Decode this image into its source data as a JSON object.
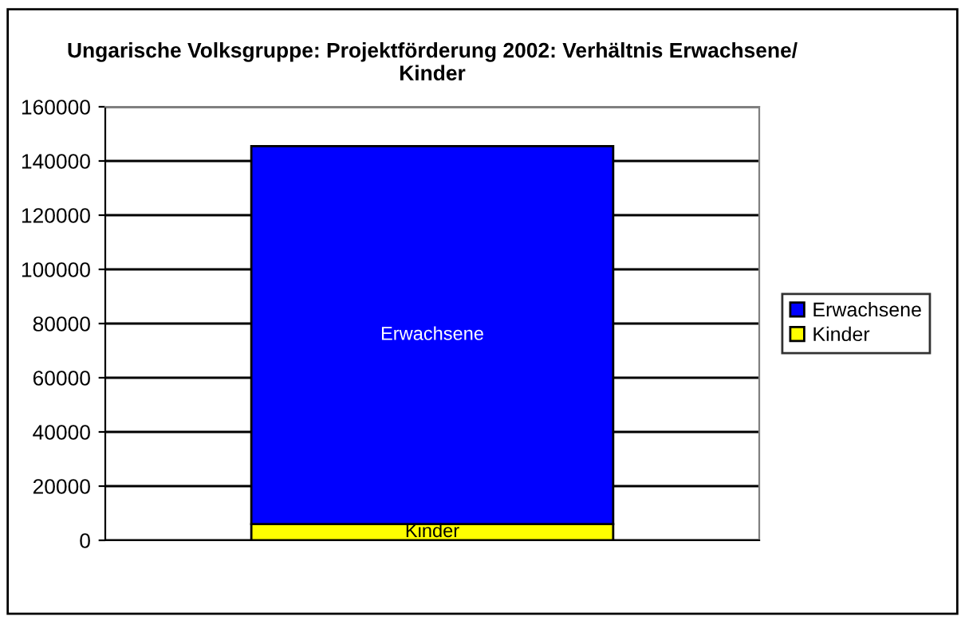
{
  "chart_data": {
    "type": "bar",
    "title": "Ungarische Volksgruppe: Projektförderung 2002: Verhältnis Erwachsene/\nKinder",
    "categories": [
      null
    ],
    "stacked": true,
    "series": [
      {
        "name": "Kinder",
        "color": "#ffff00",
        "values": [
          6000
        ]
      },
      {
        "name": "Erwachsene",
        "color": "#0000ff",
        "values": [
          139500
        ]
      }
    ],
    "ylim": [
      0,
      160000
    ],
    "yticks": [
      0,
      20000,
      40000,
      60000,
      80000,
      100000,
      120000,
      140000,
      160000
    ],
    "grid": "y",
    "legend": "right"
  }
}
